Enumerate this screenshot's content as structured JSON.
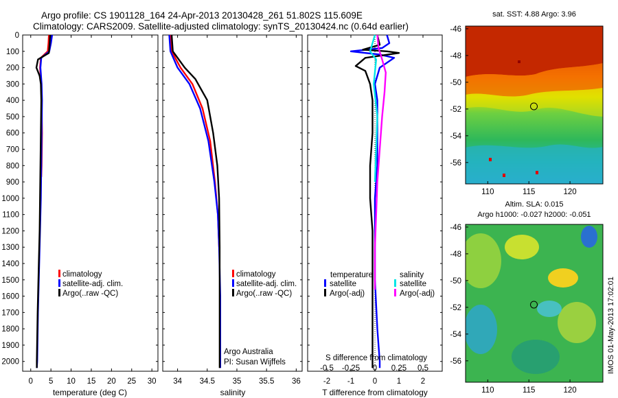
{
  "header": {
    "line1": "Argo profile: CS 1901128_164 24-Apr-2013 20130428_261 51.802S 115.609E",
    "line2": "Climatology: CARS2009. Satellite-adjusted climatology: synTS_20130424.nc (0.64d earlier)"
  },
  "colors": {
    "climatology": "#ff0000",
    "satellite": "#0000ff",
    "argo": "#000000",
    "sal_satellite": "#00e5e5",
    "sal_argo": "#ff00ff"
  },
  "depth_ticks": [
    0,
    100,
    200,
    300,
    400,
    500,
    600,
    700,
    800,
    900,
    1000,
    1100,
    1200,
    1300,
    1400,
    1500,
    1600,
    1700,
    1800,
    1900,
    2000
  ],
  "chart_data": [
    {
      "type": "line",
      "xlabel": "temperature (deg C)",
      "xticks": [
        "0",
        "5",
        "10",
        "15",
        "20",
        "25",
        "30"
      ],
      "xlim": [
        -2,
        31.5
      ],
      "ylim": [
        0,
        2060
      ],
      "legend": [
        "climatology",
        "satellite-adj. clim.",
        "Argo(..raw -QC)"
      ],
      "series": [
        {
          "name": "climatology",
          "color": "#ff0000",
          "points": [
            [
              4.5,
              0
            ],
            [
              4.4,
              50
            ],
            [
              4.2,
              100
            ],
            [
              2.5,
              140
            ],
            [
              2.3,
              200
            ],
            [
              2.6,
              300
            ],
            [
              2.7,
              400
            ],
            [
              2.8,
              600
            ],
            [
              2.7,
              800
            ],
            [
              2.6,
              870
            ]
          ]
        },
        {
          "name": "satellite-adj. clim.",
          "color": "#0000ff",
          "points": [
            [
              5.3,
              0
            ],
            [
              5.0,
              50
            ],
            [
              4.6,
              100
            ],
            [
              2.6,
              140
            ],
            [
              2.4,
              200
            ],
            [
              2.7,
              300
            ],
            [
              2.8,
              400
            ],
            [
              2.7,
              600
            ],
            [
              2.6,
              800
            ],
            [
              2.5,
              1000
            ],
            [
              2.3,
              1200
            ],
            [
              2.1,
              1400
            ],
            [
              1.8,
              1700
            ],
            [
              1.6,
              2000
            ],
            [
              1.5,
              2040
            ]
          ]
        },
        {
          "name": "Argo(..raw -QC)",
          "color": "#000000",
          "points": [
            [
              4.8,
              0
            ],
            [
              4.7,
              50
            ],
            [
              4.5,
              110
            ],
            [
              1.8,
              150
            ],
            [
              1.4,
              200
            ],
            [
              2.2,
              250
            ],
            [
              2.5,
              300
            ],
            [
              2.6,
              400
            ],
            [
              2.5,
              600
            ],
            [
              2.4,
              800
            ],
            [
              2.3,
              1000
            ],
            [
              2.2,
              1200
            ],
            [
              2.0,
              1400
            ],
            [
              1.7,
              1700
            ],
            [
              1.5,
              2000
            ],
            [
              1.5,
              2040
            ]
          ]
        }
      ]
    },
    {
      "type": "line",
      "xlabel": "salinity",
      "xticks": [
        "34",
        "34.5",
        "35",
        "35.5",
        "36"
      ],
      "xlim": [
        33.75,
        36.1
      ],
      "ylim": [
        0,
        2060
      ],
      "legend": [
        "climatology",
        "satellite-adj. clim.",
        "Argo(..raw -QC)"
      ],
      "annotations": [
        "Argo Australia",
        "PI: Susan Wijffels"
      ],
      "series": [
        {
          "name": "climatology",
          "color": "#ff0000",
          "points": [
            [
              33.88,
              0
            ],
            [
              33.9,
              100
            ],
            [
              34.05,
              200
            ],
            [
              34.25,
              300
            ],
            [
              34.42,
              450
            ],
            [
              34.55,
              650
            ],
            [
              34.63,
              900
            ],
            [
              34.68,
              1100
            ],
            [
              34.7,
              1300
            ]
          ]
        },
        {
          "name": "satellite-adj. clim.",
          "color": "#0000ff",
          "points": [
            [
              33.86,
              0
            ],
            [
              33.88,
              100
            ],
            [
              34.0,
              200
            ],
            [
              34.2,
              300
            ],
            [
              34.38,
              450
            ],
            [
              34.52,
              650
            ],
            [
              34.62,
              900
            ],
            [
              34.68,
              1100
            ],
            [
              34.7,
              1300
            ],
            [
              34.72,
              1600
            ],
            [
              34.72,
              2000
            ],
            [
              34.72,
              2040
            ]
          ]
        },
        {
          "name": "Argo(..raw -QC)",
          "color": "#000000",
          "points": [
            [
              33.9,
              0
            ],
            [
              33.92,
              100
            ],
            [
              34.12,
              200
            ],
            [
              34.3,
              270
            ],
            [
              34.5,
              400
            ],
            [
              34.6,
              600
            ],
            [
              34.67,
              800
            ],
            [
              34.7,
              1000
            ],
            [
              34.71,
              1300
            ],
            [
              34.71,
              1600
            ],
            [
              34.71,
              2000
            ],
            [
              34.71,
              2040
            ]
          ]
        }
      ]
    },
    {
      "type": "line",
      "xlabel": "T difference from climatology",
      "top_label": "S difference from climatology",
      "xticks": [
        "-2",
        "-1",
        "0",
        "1",
        "2"
      ],
      "top_xticks": [
        "-0.5",
        "-0.25",
        "0",
        "0.25",
        "0.5"
      ],
      "xlim": [
        -2.8,
        2.8
      ],
      "ylim": [
        0,
        2060
      ],
      "legend_titles": [
        "temperature",
        "salinity"
      ],
      "legend_temperature": [
        "satellite",
        "Argo(-adj)"
      ],
      "legend_salinity": [
        "satellite",
        "Argo(-adj)"
      ],
      "series": [
        {
          "name": "temperature satellite",
          "color": "#0000ff",
          "points": [
            [
              0.5,
              0
            ],
            [
              0.6,
              50
            ],
            [
              0.3,
              80
            ],
            [
              -1.0,
              100
            ],
            [
              0.2,
              120
            ],
            [
              0.8,
              140
            ],
            [
              0.2,
              200
            ],
            [
              0.0,
              300
            ],
            [
              0.1,
              400
            ],
            [
              0.1,
              600
            ],
            [
              0.1,
              800
            ],
            [
              0.0,
              1000
            ],
            [
              0.0,
              1200
            ],
            [
              0.0,
              1500
            ],
            [
              0.1,
              1800
            ],
            [
              0.2,
              2000
            ],
            [
              0.2,
              2040
            ]
          ]
        },
        {
          "name": "temperature Argo(-adj)",
          "color": "#000000",
          "points": [
            [
              0.1,
              0
            ],
            [
              0.2,
              60
            ],
            [
              -0.5,
              90
            ],
            [
              0.5,
              100
            ],
            [
              1.0,
              110
            ],
            [
              -0.4,
              140
            ],
            [
              -0.8,
              190
            ],
            [
              -0.4,
              220
            ],
            [
              -0.2,
              300
            ],
            [
              -0.1,
              400
            ],
            [
              -0.1,
              600
            ],
            [
              -0.2,
              800
            ],
            [
              -0.2,
              1000
            ],
            [
              -0.1,
              1200
            ],
            [
              -0.1,
              1500
            ],
            [
              -0.1,
              1800
            ],
            [
              -0.1,
              2000
            ],
            [
              -0.1,
              2040
            ]
          ]
        },
        {
          "name": "salinity satellite",
          "color": "#00e5e5",
          "points": [
            [
              0.0,
              0
            ],
            [
              -0.2,
              100
            ],
            [
              0.05,
              150
            ],
            [
              -0.05,
              300
            ],
            [
              0.1,
              500
            ],
            [
              0.05,
              700
            ],
            [
              0.0,
              900
            ]
          ]
        },
        {
          "name": "salinity Argo(-adj)",
          "color": "#ff00ff",
          "points": [
            [
              0.1,
              0
            ],
            [
              0.15,
              80
            ],
            [
              0.3,
              150
            ],
            [
              0.45,
              230
            ],
            [
              0.4,
              350
            ],
            [
              0.3,
              500
            ],
            [
              0.2,
              700
            ],
            [
              0.1,
              900
            ],
            [
              0.05,
              1100
            ],
            [
              0.0,
              1300
            ],
            [
              0.0,
              1500
            ],
            [
              0.0,
              1560
            ]
          ]
        }
      ]
    },
    {
      "type": "heatmap",
      "title": "sat. SST: 4.88 Argo: 3.96",
      "xticks": [
        "110",
        "115",
        "120"
      ],
      "yticks": [
        "-46",
        "-48",
        "-50",
        "-52",
        "-54",
        "-56"
      ],
      "xlim": [
        107.3,
        124.0
      ],
      "ylim": [
        -57.6,
        -45.8
      ],
      "marker": {
        "lon": 115.609,
        "lat": -51.802
      }
    },
    {
      "type": "heatmap",
      "title": "Altim. SLA: 0.015",
      "subtitle": "Argo h1000: -0.027 h2000: -0.051",
      "xticks": [
        "110",
        "115",
        "120"
      ],
      "yticks": [
        "-46",
        "-48",
        "-50",
        "-52",
        "-54",
        "-56"
      ],
      "xlim": [
        107.3,
        124.0
      ],
      "ylim": [
        -57.6,
        -45.8
      ],
      "marker": {
        "lon": 115.609,
        "lat": -51.802
      }
    }
  ],
  "footer": {
    "imos_stamp": "IMOS 01-May-2013 17:02:01"
  }
}
